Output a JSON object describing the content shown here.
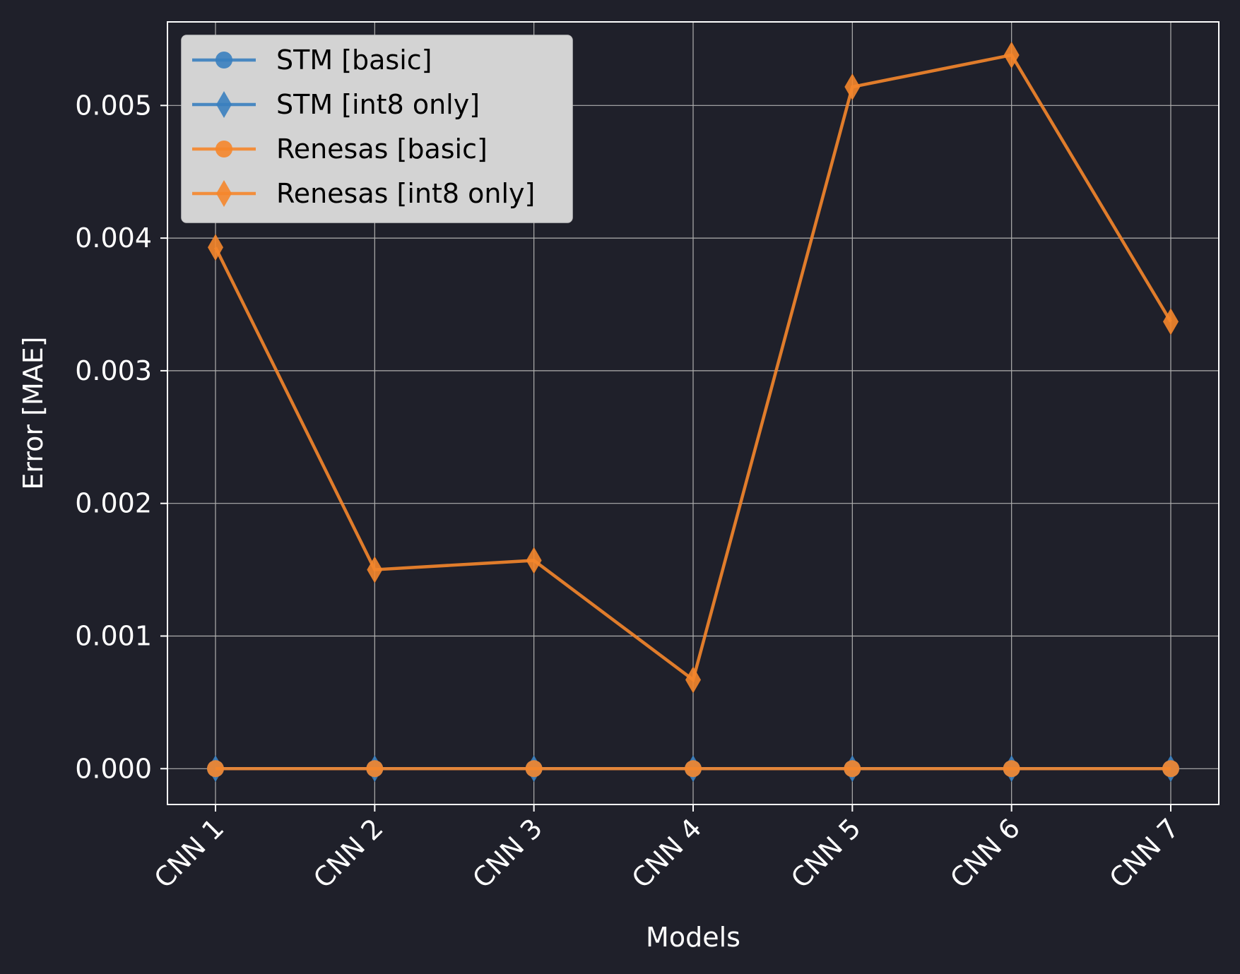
{
  "chart_data": {
    "type": "line",
    "title": "",
    "xlabel": "Models",
    "ylabel": "Error [MAE]",
    "categories": [
      "CNN 1",
      "CNN 2",
      "CNN 3",
      "CNN 4",
      "CNN 5",
      "CNN 6",
      "CNN 7"
    ],
    "ylim": [
      -0.00027,
      0.00563
    ],
    "yticks": [
      "0.000",
      "0.001",
      "0.002",
      "0.003",
      "0.004",
      "0.005"
    ],
    "grid": true,
    "legend_position": "top-left",
    "series": [
      {
        "name": "STM [basic]",
        "marker": "circle",
        "color": "#3a7fbf",
        "values": [
          0.0,
          0.0,
          0.0,
          0.0,
          0.0,
          0.0,
          0.0
        ]
      },
      {
        "name": "STM [int8 only]",
        "marker": "diamond",
        "color": "#3a7fbf",
        "values": [
          0.0,
          0.0,
          0.0,
          0.0,
          0.0,
          0.0,
          0.0
        ]
      },
      {
        "name": "Renesas [basic]",
        "marker": "circle",
        "color": "#f5862b",
        "values": [
          0.0,
          0.0,
          0.0,
          0.0,
          0.0,
          0.0,
          0.0
        ]
      },
      {
        "name": "Renesas [int8 only]",
        "marker": "diamond",
        "color": "#f5862b",
        "values": [
          0.00393,
          0.0015,
          0.00157,
          0.00067,
          0.00514,
          0.00538,
          0.00337
        ]
      }
    ],
    "colors": {
      "background": "#1f202a",
      "axis": "#ffffff",
      "grid": "#b0b0b0",
      "legend_bg": "#d3d3d3",
      "line_overlay": "#db7530"
    }
  }
}
